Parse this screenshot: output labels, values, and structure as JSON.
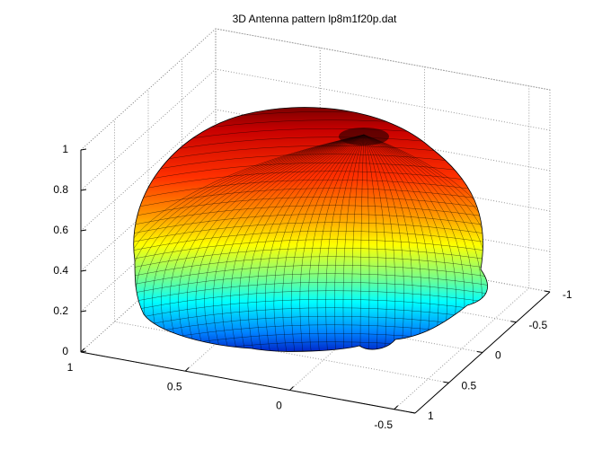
{
  "chart_data": {
    "type": "surface3d",
    "title": "3D Antenna pattern lp8m1f20p.dat",
    "colormap": "jet",
    "grid": true,
    "xlim": [
      1,
      -0.6
    ],
    "xticks": [
      1,
      0.5,
      0,
      -0.5
    ],
    "ylim": [
      1,
      -1
    ],
    "yticks": [
      1,
      0.5,
      0,
      -0.5,
      -1
    ],
    "zlim": [
      0,
      1
    ],
    "zticks": [
      0,
      0.2,
      0.4,
      0.6,
      0.8,
      1
    ]
  }
}
